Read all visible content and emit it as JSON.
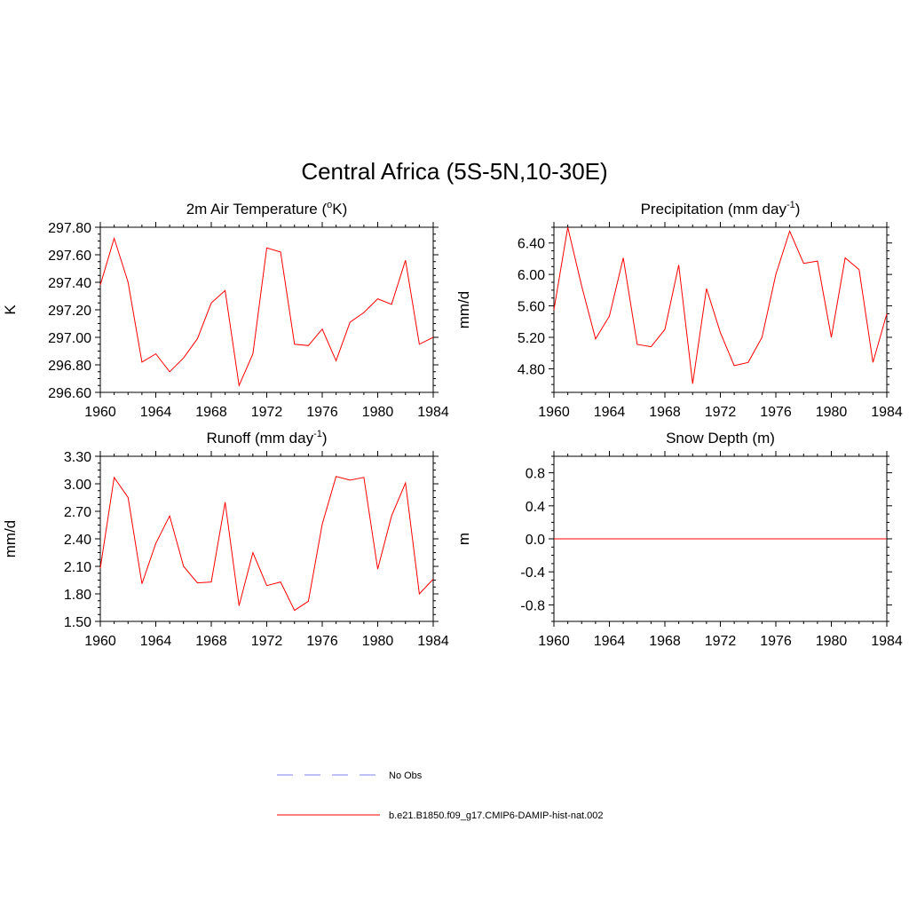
{
  "figure_title": "Central Africa (5S-5N,10-30E)",
  "legend": {
    "items": [
      {
        "label": "No Obs",
        "style": "dashed",
        "color": "#9a9af0"
      },
      {
        "label": "b.e21.B1850.f09_g17.CMIP6-DAMIP-hist-nat.002",
        "style": "solid",
        "color": "#ff0000"
      }
    ]
  },
  "chart_data": [
    {
      "type": "line",
      "title_main": "2m Air Temperature (",
      "title_sup": "o",
      "title_tail": "K)",
      "ylabel": "K",
      "xlim": [
        1960,
        1984
      ],
      "ylim": [
        296.6,
        297.8
      ],
      "xticks": [
        1960,
        1964,
        1968,
        1972,
        1976,
        1980,
        1984
      ],
      "yticks": [
        296.6,
        296.8,
        297.0,
        297.2,
        297.4,
        297.6,
        297.8
      ],
      "ytick_decimals": 2,
      "color": "#ff0000",
      "x": [
        1960,
        1961,
        1962,
        1963,
        1964,
        1965,
        1966,
        1967,
        1968,
        1969,
        1970,
        1971,
        1972,
        1973,
        1974,
        1975,
        1976,
        1977,
        1978,
        1979,
        1980,
        1981,
        1982,
        1983,
        1984
      ],
      "y": [
        297.38,
        297.72,
        297.4,
        296.82,
        296.88,
        296.75,
        296.85,
        296.99,
        297.25,
        297.34,
        296.65,
        296.88,
        297.65,
        297.62,
        296.95,
        296.94,
        297.06,
        296.83,
        297.11,
        297.18,
        297.28,
        297.24,
        297.56,
        296.95,
        297.0
      ]
    },
    {
      "type": "line",
      "title_main": "Precipitation (mm day",
      "title_sup": "-1",
      "title_tail": ")",
      "ylabel": "mm/d",
      "xlim": [
        1960,
        1984
      ],
      "ylim": [
        4.5,
        6.6
      ],
      "xticks": [
        1960,
        1964,
        1968,
        1972,
        1976,
        1980,
        1984
      ],
      "yticks": [
        4.8,
        5.2,
        5.6,
        6.0,
        6.4
      ],
      "ytick_decimals": 2,
      "color": "#ff0000",
      "x": [
        1960,
        1961,
        1962,
        1963,
        1964,
        1965,
        1966,
        1967,
        1968,
        1969,
        1970,
        1971,
        1972,
        1973,
        1974,
        1975,
        1976,
        1977,
        1978,
        1979,
        1980,
        1981,
        1982,
        1983,
        1984
      ],
      "y": [
        5.55,
        6.6,
        5.85,
        5.18,
        5.47,
        6.21,
        5.11,
        5.08,
        5.3,
        6.12,
        4.61,
        5.82,
        5.26,
        4.84,
        4.88,
        5.2,
        6.0,
        6.55,
        6.14,
        6.17,
        5.2,
        6.21,
        6.06,
        4.88,
        5.5
      ]
    },
    {
      "type": "line",
      "title_main": "Runoff (mm day",
      "title_sup": "-1",
      "title_tail": ")",
      "ylabel": "mm/d",
      "xlim": [
        1960,
        1984
      ],
      "ylim": [
        1.5,
        3.3
      ],
      "xticks": [
        1960,
        1964,
        1968,
        1972,
        1976,
        1980,
        1984
      ],
      "yticks": [
        1.5,
        1.8,
        2.1,
        2.4,
        2.7,
        3.0,
        3.3
      ],
      "ytick_decimals": 2,
      "color": "#ff0000",
      "x": [
        1960,
        1961,
        1962,
        1963,
        1964,
        1965,
        1966,
        1967,
        1968,
        1969,
        1970,
        1971,
        1972,
        1973,
        1974,
        1975,
        1976,
        1977,
        1978,
        1979,
        1980,
        1981,
        1982,
        1983,
        1984
      ],
      "y": [
        2.08,
        3.07,
        2.85,
        1.91,
        2.35,
        2.65,
        2.1,
        1.92,
        1.93,
        2.8,
        1.67,
        2.25,
        1.89,
        1.93,
        1.62,
        1.72,
        2.56,
        3.08,
        3.04,
        3.07,
        2.07,
        2.65,
        3.01,
        1.8,
        1.96
      ]
    },
    {
      "type": "line",
      "title_main": "Snow Depth (m)",
      "title_sup": "",
      "title_tail": "",
      "ylabel": "m",
      "xlim": [
        1960,
        1984
      ],
      "ylim": [
        -1.0,
        1.0
      ],
      "xticks": [
        1960,
        1964,
        1968,
        1972,
        1976,
        1980,
        1984
      ],
      "yticks": [
        -0.8,
        -0.4,
        0.0,
        0.4,
        0.8
      ],
      "ytick_decimals": 1,
      "color": "#ff0000",
      "x": [
        1960,
        1984
      ],
      "y": [
        0.0,
        0.0
      ]
    }
  ]
}
